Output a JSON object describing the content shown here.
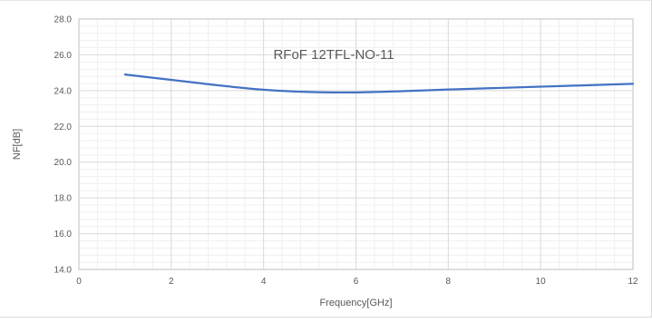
{
  "chart_data": {
    "type": "line",
    "title": "RFoF 12TFL-NO-11",
    "xlabel": "Frequency[GHz]",
    "ylabel": "NF[dB]",
    "xlim": [
      0,
      12
    ],
    "ylim": [
      14.0,
      28.0
    ],
    "x_ticks": [
      "0",
      "2",
      "4",
      "6",
      "8",
      "10",
      "12"
    ],
    "y_ticks": [
      "14.0",
      "16.0",
      "18.0",
      "20.0",
      "22.0",
      "24.0",
      "26.0",
      "28.0"
    ],
    "grid": true,
    "legend": "none",
    "series": [
      {
        "color": "#4472c4",
        "x": [
          1,
          2,
          3,
          4,
          5,
          6,
          7,
          8,
          9,
          10,
          11,
          12
        ],
        "y": [
          24.9,
          24.6,
          24.3,
          24.05,
          23.92,
          23.9,
          23.97,
          24.06,
          24.14,
          24.22,
          24.3,
          24.38
        ]
      }
    ]
  }
}
